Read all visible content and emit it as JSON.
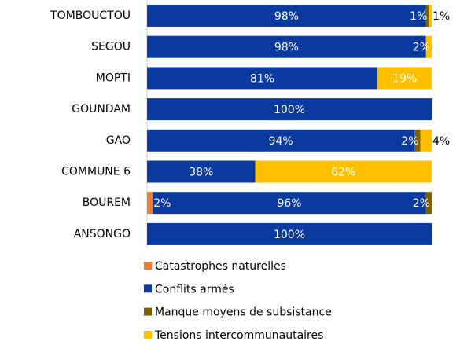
{
  "chart_data": {
    "type": "stacked-bar-horizontal",
    "categories": [
      "TOMBOUCTOU",
      "SEGOU",
      "MOPTI",
      "GOUNDAM",
      "GAO",
      "COMMUNE 6",
      "BOUREM",
      "ANSONGO"
    ],
    "series": [
      {
        "name": "Catastrophes naturelles",
        "color": "#ed7d31",
        "values": [
          null,
          null,
          null,
          null,
          null,
          null,
          2,
          null
        ],
        "value_labels": [
          null,
          null,
          null,
          null,
          null,
          null,
          "2%",
          null
        ]
      },
      {
        "name": "Conflits armés",
        "color": "#0b3a9e",
        "values": [
          98,
          98,
          81,
          100,
          94,
          38,
          96,
          100
        ],
        "value_labels": [
          "98%",
          "98%",
          "81%",
          "100%",
          "94%",
          "38%",
          "96%",
          "100%"
        ]
      },
      {
        "name": "Manque moyens de subsistance",
        "color": "#7f6000",
        "values": [
          1,
          null,
          null,
          null,
          2,
          null,
          2,
          null
        ],
        "value_labels": [
          "1%",
          null,
          null,
          null,
          "2%",
          null,
          "2%",
          null
        ]
      },
      {
        "name": "Tensions intercommunautaires",
        "color": "#ffc000",
        "values": [
          1,
          2,
          19,
          null,
          4,
          62,
          null,
          null
        ],
        "value_labels": [
          "1%",
          "2%",
          "19%",
          null,
          "4%",
          "62%",
          null,
          null
        ]
      }
    ],
    "xlim": [
      0,
      100
    ]
  }
}
